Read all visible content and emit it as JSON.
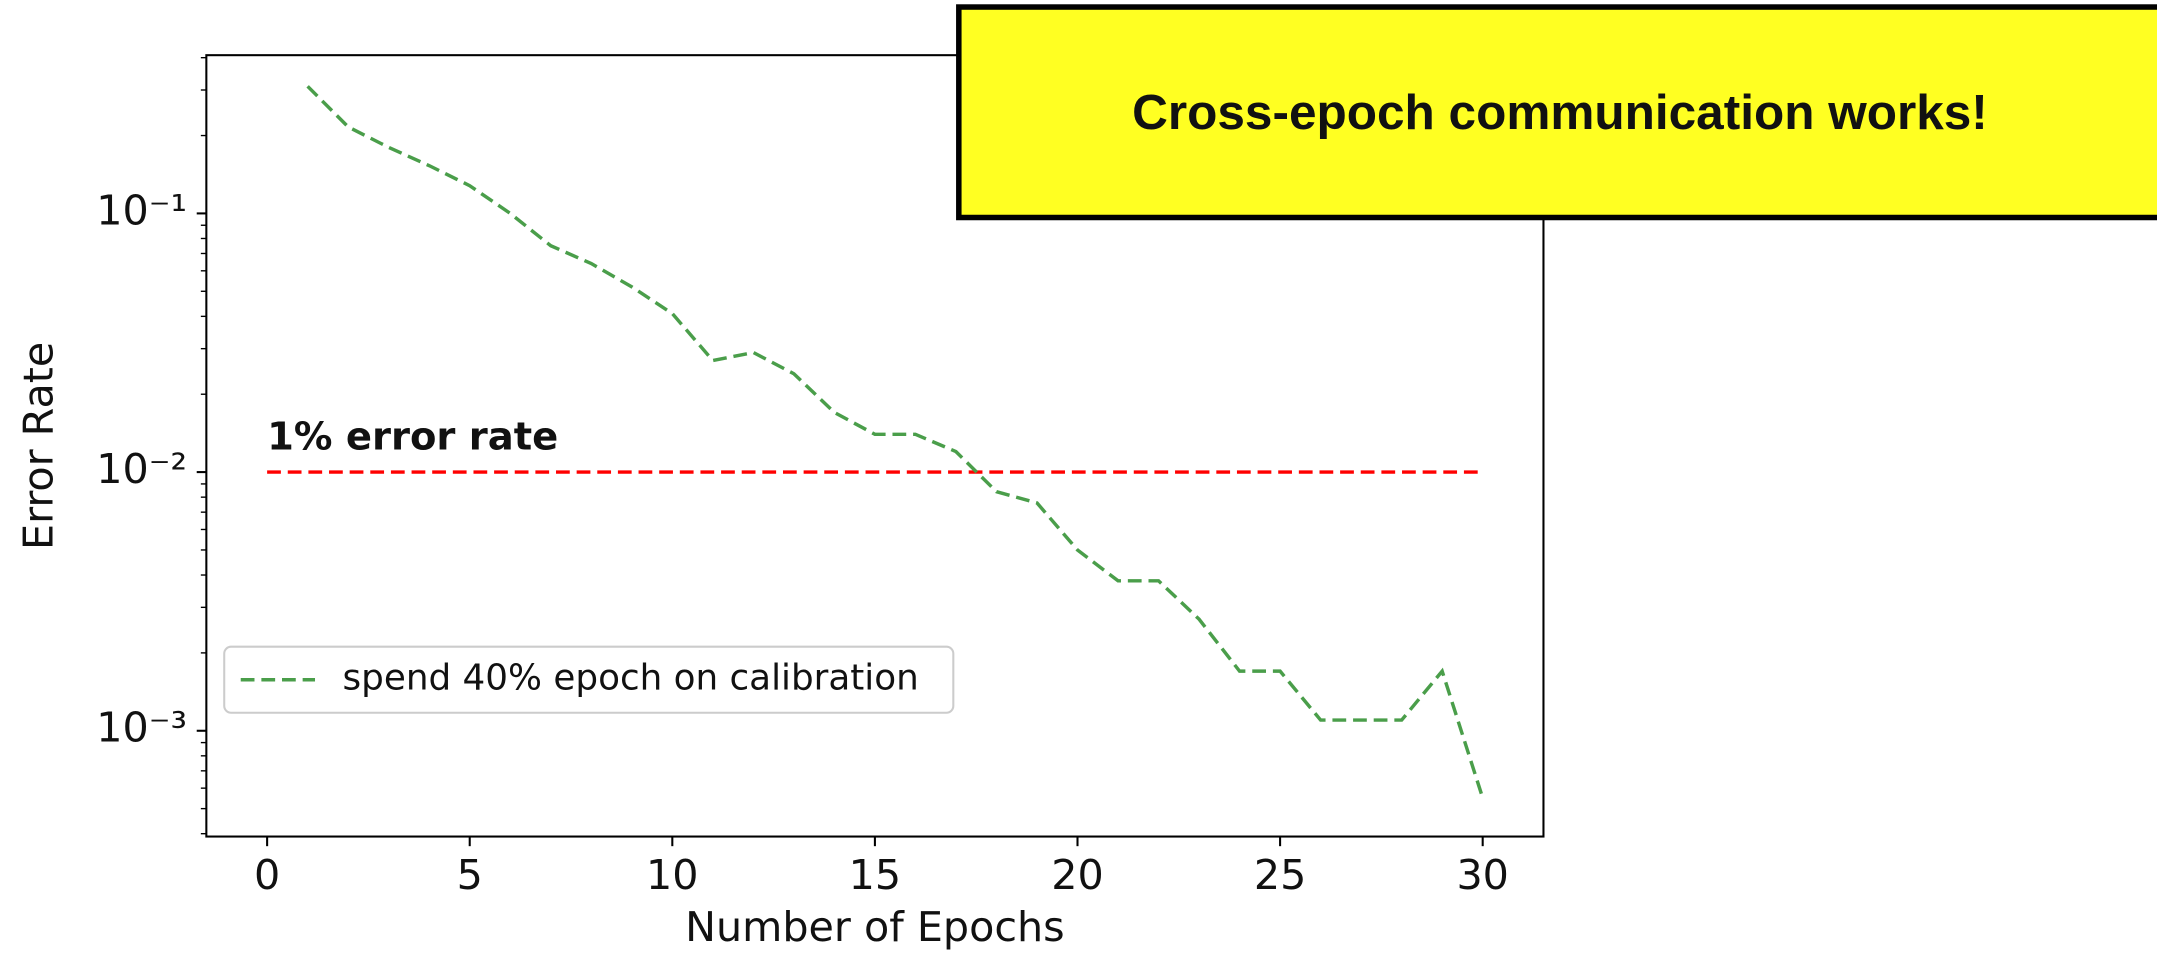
{
  "chart_data": {
    "type": "line",
    "x_label": "Number of Epochs",
    "y_label": "Error Rate",
    "log_y": true,
    "x": [
      1,
      2,
      3,
      4,
      5,
      6,
      7,
      8,
      9,
      10,
      11,
      12,
      13,
      14,
      15,
      16,
      17,
      18,
      19,
      20,
      21,
      22,
      23,
      24,
      25,
      26,
      27,
      28,
      29,
      30
    ],
    "series": [
      {
        "name": "spend 40% epoch on calibration",
        "color": "#4a9e4a",
        "values": [
          0.31,
          0.216,
          0.18,
          0.153,
          0.128,
          0.1,
          0.075,
          0.064,
          0.052,
          0.041,
          0.027,
          0.029,
          0.024,
          0.017,
          0.014,
          0.014,
          0.012,
          0.0084,
          0.0076,
          0.005,
          0.0038,
          0.0038,
          0.0027,
          0.0017,
          0.0017,
          0.0011,
          0.0011,
          0.0011,
          0.0017,
          0.00055
        ]
      }
    ],
    "reference_line": {
      "label": "1% error rate",
      "value": 0.01,
      "x": [
        0,
        30
      ],
      "color": "#ff0000"
    },
    "callout": {
      "text": "Cross-epoch communication works!",
      "color": "#ffff22"
    },
    "legend": "lower left",
    "xlim": [
      -1.5,
      31.5
    ],
    "ylim": [
      0.00039,
      0.409
    ],
    "xticks": [
      0,
      5,
      10,
      15,
      20,
      25,
      30
    ],
    "yticks": [
      {
        "value": 0.1,
        "label": "10⁻¹"
      },
      {
        "value": 0.01,
        "label": "10⁻²"
      },
      {
        "value": 0.001,
        "label": "10⁻³"
      }
    ]
  }
}
